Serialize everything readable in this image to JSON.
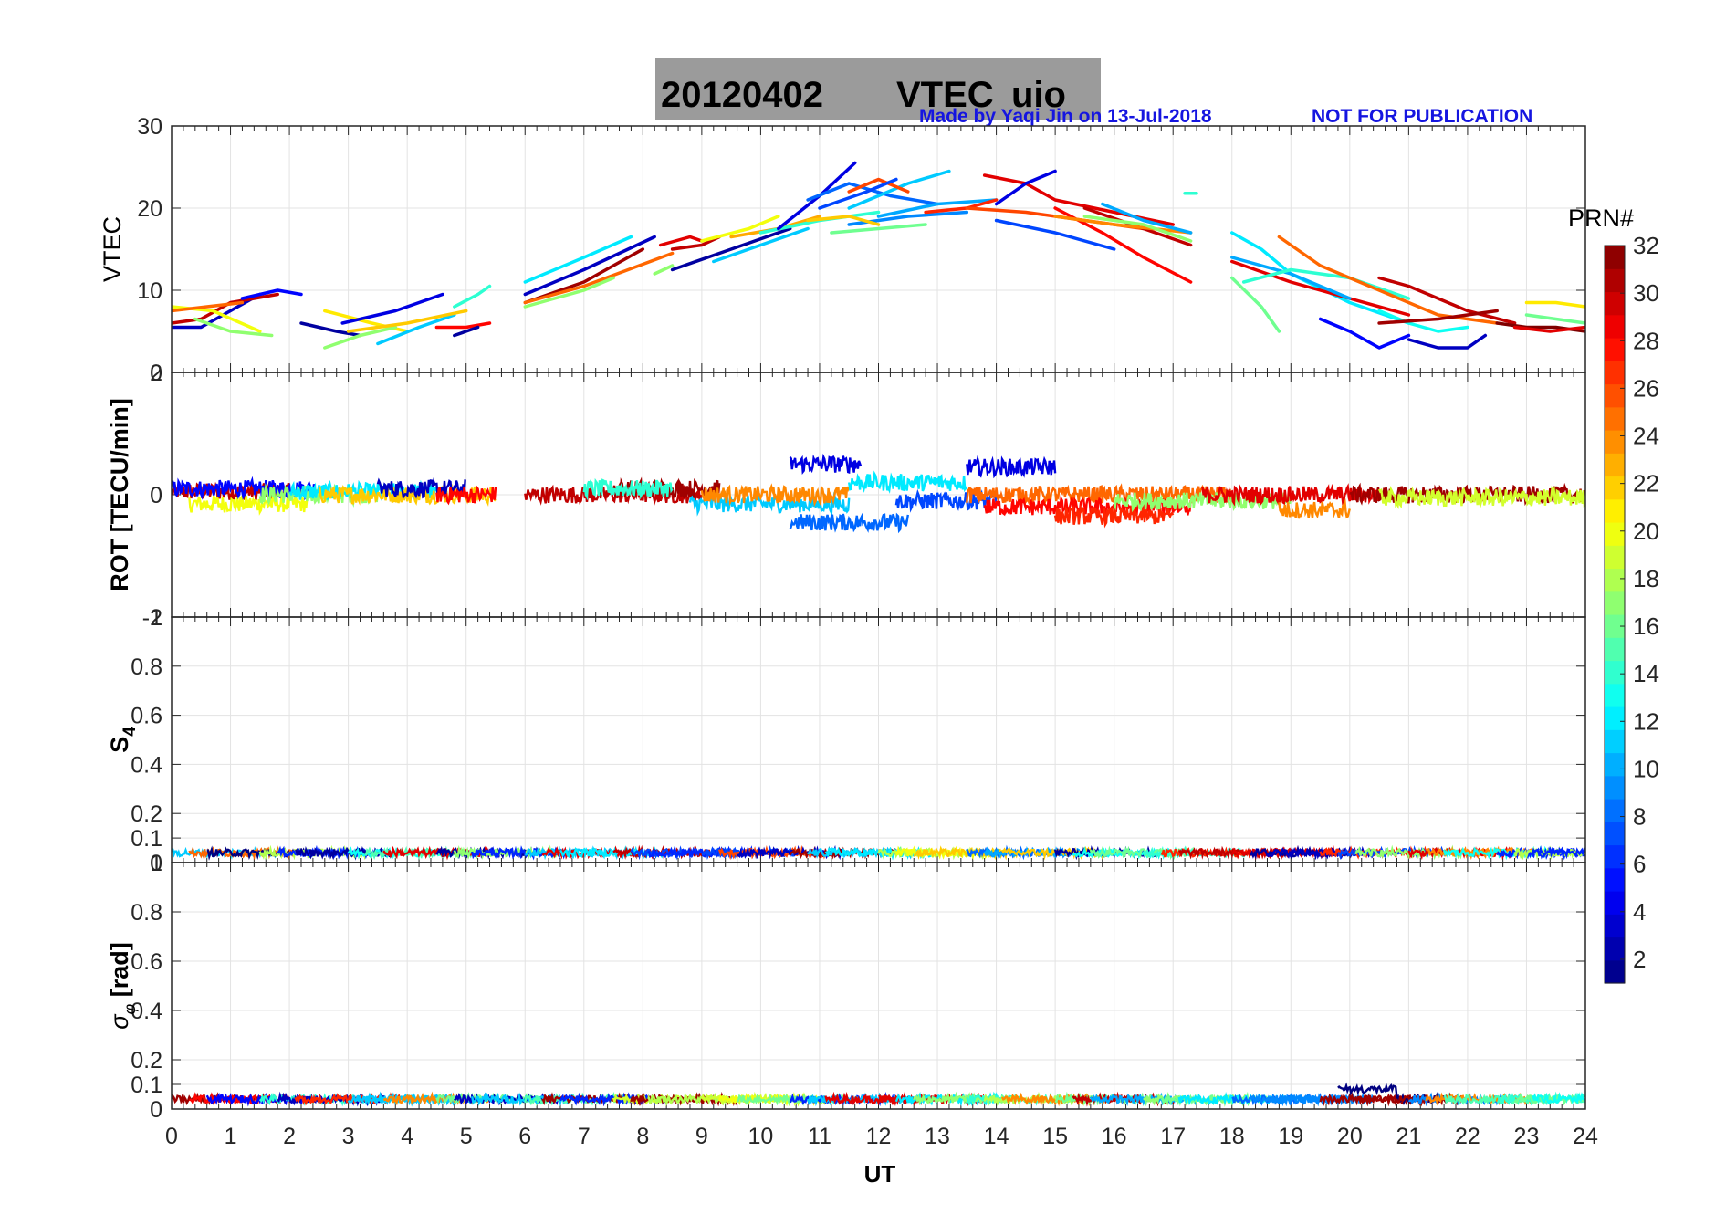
{
  "figure": {
    "title_date": "20120402",
    "title_param": "VTEC",
    "title_station": "uio",
    "credit": "Made by Yaqi Jin on 13-Jul-2018",
    "notice": "NOT FOR PUBLICATION",
    "title_box_color": "#9b9b9b",
    "credit_color": "#1515e0"
  },
  "chart_data": [
    {
      "type": "line",
      "panel": "VTEC",
      "ylabel": "VTEC",
      "xlim": [
        0,
        24
      ],
      "ylim": [
        0,
        30
      ],
      "yticks": [
        0,
        10,
        20,
        30
      ],
      "grid": true,
      "series": [
        {
          "prn": 3,
          "x": [
            0.0,
            0.5,
            1.0,
            1.5
          ],
          "y": [
            5.5,
            5.5,
            7.5,
            9.5
          ]
        },
        {
          "prn": 30,
          "x": [
            0.0,
            0.5,
            1.0,
            1.8
          ],
          "y": [
            6.0,
            6.5,
            8.5,
            9.5
          ]
        },
        {
          "prn": 20,
          "x": [
            0.0,
            0.7,
            1.5
          ],
          "y": [
            8.0,
            7.5,
            5.0
          ]
        },
        {
          "prn": 17,
          "x": [
            0.4,
            1.0,
            1.7
          ],
          "y": [
            6.5,
            5.0,
            4.5
          ]
        },
        {
          "prn": 25,
          "x": [
            0.0,
            0.6,
            1.2
          ],
          "y": [
            7.5,
            8.0,
            8.5
          ]
        },
        {
          "prn": 5,
          "x": [
            1.2,
            1.8,
            2.2
          ],
          "y": [
            9.0,
            10.0,
            9.5
          ]
        },
        {
          "prn": 2,
          "x": [
            2.2,
            2.8,
            3.2
          ],
          "y": [
            6.0,
            5.0,
            4.5
          ]
        },
        {
          "prn": 21,
          "x": [
            2.6,
            3.4,
            4.0
          ],
          "y": [
            7.5,
            6.0,
            5.0
          ]
        },
        {
          "prn": 17,
          "x": [
            2.6,
            3.2,
            3.8
          ],
          "y": [
            3.0,
            4.5,
            5.5
          ]
        },
        {
          "prn": 4,
          "x": [
            2.9,
            3.8,
            4.6
          ],
          "y": [
            6.0,
            7.5,
            9.5
          ]
        },
        {
          "prn": 11,
          "x": [
            3.5,
            4.2,
            4.8
          ],
          "y": [
            3.5,
            5.5,
            7.0
          ]
        },
        {
          "prn": 22,
          "x": [
            3.0,
            4.0,
            5.0
          ],
          "y": [
            5.0,
            6.0,
            7.5
          ]
        },
        {
          "prn": 28,
          "x": [
            4.5,
            5.0,
            5.4
          ],
          "y": [
            5.5,
            5.5,
            6.0
          ]
        },
        {
          "prn": 14,
          "x": [
            4.8,
            5.2,
            5.4
          ],
          "y": [
            8.0,
            9.5,
            10.5
          ]
        },
        {
          "prn": 2,
          "x": [
            4.8,
            5.2
          ],
          "y": [
            4.5,
            5.5
          ]
        },
        {
          "prn": 12,
          "x": [
            6.0,
            7.0,
            7.8
          ],
          "y": [
            11.0,
            14.0,
            16.5
          ]
        },
        {
          "prn": 3,
          "x": [
            6.0,
            7.0,
            8.2
          ],
          "y": [
            9.5,
            12.5,
            16.5
          ]
        },
        {
          "prn": 31,
          "x": [
            6.0,
            7.0,
            8.0
          ],
          "y": [
            8.5,
            11.0,
            15.0
          ]
        },
        {
          "prn": 25,
          "x": [
            6.0,
            7.0,
            8.5
          ],
          "y": [
            8.5,
            10.5,
            14.5
          ]
        },
        {
          "prn": 17,
          "x": [
            6.0,
            7.0,
            7.5
          ],
          "y": [
            8.0,
            10.0,
            11.5
          ]
        },
        {
          "prn": 17,
          "x": [
            8.2,
            8.5
          ],
          "y": [
            12.0,
            13.0
          ]
        },
        {
          "prn": 30,
          "x": [
            8.5,
            9.0,
            9.3
          ],
          "y": [
            15.0,
            15.5,
            16.5
          ]
        },
        {
          "prn": 29,
          "x": [
            8.3,
            8.8,
            9.0
          ],
          "y": [
            15.5,
            16.5,
            16.0
          ]
        },
        {
          "prn": 2,
          "x": [
            8.5,
            9.5,
            10.5
          ],
          "y": [
            12.5,
            15.0,
            17.5
          ]
        },
        {
          "prn": 20,
          "x": [
            9.0,
            9.8,
            10.3
          ],
          "y": [
            16.0,
            17.5,
            19.0
          ]
        },
        {
          "prn": 11,
          "x": [
            9.2,
            10.0,
            10.8
          ],
          "y": [
            13.5,
            15.5,
            17.5
          ]
        },
        {
          "prn": 23,
          "x": [
            9.5,
            10.3,
            11.0
          ],
          "y": [
            16.5,
            17.5,
            19.0
          ]
        },
        {
          "prn": 14,
          "x": [
            10.0,
            11.0,
            12.0
          ],
          "y": [
            17.0,
            18.5,
            19.5
          ]
        },
        {
          "prn": 4,
          "x": [
            10.3,
            11.0,
            11.6
          ],
          "y": [
            17.5,
            21.5,
            25.5
          ]
        },
        {
          "prn": 8,
          "x": [
            10.8,
            11.5,
            12.2,
            13.0
          ],
          "y": [
            21.0,
            23.0,
            21.5,
            20.5
          ]
        },
        {
          "prn": 11,
          "x": [
            11.5,
            12.5,
            13.2
          ],
          "y": [
            20.0,
            23.0,
            24.5
          ]
        },
        {
          "prn": 26,
          "x": [
            11.5,
            12.0,
            12.5
          ],
          "y": [
            22.0,
            23.5,
            22.0
          ]
        },
        {
          "prn": 7,
          "x": [
            11.0,
            11.8,
            12.3
          ],
          "y": [
            20.0,
            22.0,
            23.5
          ]
        },
        {
          "prn": 16,
          "x": [
            11.2,
            12.0,
            12.8
          ],
          "y": [
            17.0,
            17.5,
            18.0
          ]
        },
        {
          "prn": 9,
          "x": [
            11.5,
            12.5,
            13.5
          ],
          "y": [
            18.0,
            19.0,
            19.5
          ]
        },
        {
          "prn": 22,
          "x": [
            10.8,
            11.5,
            12.0
          ],
          "y": [
            18.5,
            19.0,
            18.0
          ]
        },
        {
          "prn": 10,
          "x": [
            12.0,
            13.0,
            14.0
          ],
          "y": [
            19.0,
            20.5,
            21.0
          ]
        },
        {
          "prn": 27,
          "x": [
            12.8,
            13.5,
            14.0
          ],
          "y": [
            19.5,
            20.0,
            21.0
          ]
        },
        {
          "prn": 26,
          "x": [
            13.5,
            14.5,
            15.5,
            16.5
          ],
          "y": [
            20.0,
            19.5,
            18.5,
            17.5
          ]
        },
        {
          "prn": 29,
          "x": [
            13.8,
            14.5,
            15.0,
            16.0,
            17.0
          ],
          "y": [
            24.0,
            23.0,
            21.0,
            19.5,
            18.0
          ]
        },
        {
          "prn": 4,
          "x": [
            14.0,
            14.5,
            15.0
          ],
          "y": [
            20.5,
            23.0,
            24.5
          ]
        },
        {
          "prn": 28,
          "x": [
            15.0,
            15.8,
            16.5,
            17.3
          ],
          "y": [
            20.0,
            17.0,
            14.0,
            11.0
          ]
        },
        {
          "prn": 7,
          "x": [
            14.0,
            15.0,
            16.0
          ],
          "y": [
            18.5,
            17.0,
            15.0
          ]
        },
        {
          "prn": 30,
          "x": [
            15.5,
            16.5,
            17.3
          ],
          "y": [
            20.0,
            17.5,
            15.5
          ]
        },
        {
          "prn": 24,
          "x": [
            15.0,
            16.0,
            17.3
          ],
          "y": [
            19.0,
            18.0,
            17.0
          ]
        },
        {
          "prn": 10,
          "x": [
            15.8,
            16.5,
            17.3
          ],
          "y": [
            20.5,
            18.5,
            17.0
          ]
        },
        {
          "prn": 17,
          "x": [
            15.5,
            16.5,
            17.3
          ],
          "y": [
            19.0,
            18.0,
            16.0
          ]
        },
        {
          "prn": 14,
          "x": [
            17.2,
            17.4
          ],
          "y": [
            21.8,
            21.8
          ]
        },
        {
          "prn": 12,
          "x": [
            18.0,
            18.5,
            19.0,
            20.0,
            21.0
          ],
          "y": [
            17.0,
            15.0,
            12.0,
            8.5,
            6.0
          ]
        },
        {
          "prn": 16,
          "x": [
            18.0,
            18.5,
            18.8
          ],
          "y": [
            11.5,
            8.0,
            5.0
          ]
        },
        {
          "prn": 29,
          "x": [
            18.0,
            19.0,
            20.0,
            21.0
          ],
          "y": [
            13.5,
            11.0,
            9.0,
            7.0
          ]
        },
        {
          "prn": 10,
          "x": [
            18.0,
            19.0,
            20.0
          ],
          "y": [
            14.0,
            12.0,
            9.0
          ]
        },
        {
          "prn": 14,
          "x": [
            18.2,
            19.0,
            20.0,
            21.0
          ],
          "y": [
            11.0,
            12.5,
            11.5,
            9.0
          ]
        },
        {
          "prn": 25,
          "x": [
            18.8,
            19.5,
            20.5,
            21.5,
            22.5
          ],
          "y": [
            16.5,
            13.0,
            10.0,
            7.0,
            6.0
          ]
        },
        {
          "prn": 5,
          "x": [
            19.5,
            20.0,
            20.5,
            21.0
          ],
          "y": [
            6.5,
            5.0,
            3.0,
            4.5
          ]
        },
        {
          "prn": 30,
          "x": [
            20.5,
            21.0,
            21.5,
            22.0,
            22.8
          ],
          "y": [
            11.5,
            10.5,
            9.0,
            7.5,
            6.0
          ]
        },
        {
          "prn": 13,
          "x": [
            20.5,
            21.0,
            21.5,
            22.0
          ],
          "y": [
            7.5,
            6.0,
            5.0,
            5.5
          ]
        },
        {
          "prn": 31,
          "x": [
            20.5,
            21.5,
            22.5
          ],
          "y": [
            6.0,
            6.5,
            7.5
          ]
        },
        {
          "prn": 3,
          "x": [
            21.0,
            21.5,
            22.0,
            22.3
          ],
          "y": [
            4.0,
            3.0,
            3.0,
            4.5
          ]
        },
        {
          "prn": 32,
          "x": [
            22.5,
            23.0,
            23.5,
            24.0
          ],
          "y": [
            6.0,
            5.5,
            5.5,
            5.0
          ]
        },
        {
          "prn": 21,
          "x": [
            23.0,
            23.5,
            24.0
          ],
          "y": [
            8.5,
            8.5,
            8.0
          ]
        },
        {
          "prn": 16,
          "x": [
            23.0,
            23.5,
            24.0
          ],
          "y": [
            7.0,
            6.5,
            6.0
          ]
        },
        {
          "prn": 29,
          "x": [
            22.8,
            23.4,
            24.0
          ],
          "y": [
            5.5,
            5.0,
            5.5
          ]
        }
      ]
    },
    {
      "type": "scatter",
      "panel": "ROT",
      "ylabel": "ROT [TECU/min]",
      "xlim": [
        0,
        24
      ],
      "ylim": [
        -2,
        2
      ],
      "ytick_labels": [
        "-2",
        "0",
        "2"
      ],
      "grid": true,
      "bands": [
        {
          "prn": 30,
          "x0": 0.0,
          "x1": 2.0,
          "y": 0.05
        },
        {
          "prn": 20,
          "x0": 0.3,
          "x1": 2.3,
          "y": -0.15
        },
        {
          "prn": 5,
          "x0": 0.0,
          "x1": 2.5,
          "y": 0.1
        },
        {
          "prn": 17,
          "x0": 1.5,
          "x1": 3.5,
          "y": 0.0
        },
        {
          "prn": 12,
          "x0": 2.0,
          "x1": 4.5,
          "y": 0.05
        },
        {
          "prn": 22,
          "x0": 2.5,
          "x1": 5.5,
          "y": 0.0
        },
        {
          "prn": 3,
          "x0": 3.5,
          "x1": 5.0,
          "y": 0.1
        },
        {
          "prn": 28,
          "x0": 4.5,
          "x1": 5.5,
          "y": 0.0
        },
        {
          "prn": 30,
          "x0": 6.0,
          "x1": 9.0,
          "y": 0.0
        },
        {
          "prn": 31,
          "x0": 7.5,
          "x1": 9.3,
          "y": 0.1
        },
        {
          "prn": 14,
          "x0": 7.0,
          "x1": 8.5,
          "y": 0.1
        },
        {
          "prn": 11,
          "x0": 8.8,
          "x1": 11.5,
          "y": -0.15
        },
        {
          "prn": 24,
          "x0": 9.0,
          "x1": 11.5,
          "y": 0.0
        },
        {
          "prn": 8,
          "x0": 10.5,
          "x1": 12.5,
          "y": -0.45
        },
        {
          "prn": 4,
          "x0": 10.5,
          "x1": 11.7,
          "y": 0.5
        },
        {
          "prn": 12,
          "x0": 11.5,
          "x1": 13.5,
          "y": 0.2
        },
        {
          "prn": 7,
          "x0": 12.3,
          "x1": 14.0,
          "y": -0.1
        },
        {
          "prn": 4,
          "x0": 13.5,
          "x1": 15.0,
          "y": 0.45
        },
        {
          "prn": 25,
          "x0": 13.5,
          "x1": 18.0,
          "y": 0.0
        },
        {
          "prn": 28,
          "x0": 13.8,
          "x1": 17.3,
          "y": -0.2
        },
        {
          "prn": 27,
          "x0": 15.0,
          "x1": 17.0,
          "y": -0.35
        },
        {
          "prn": 17,
          "x0": 16.0,
          "x1": 19.0,
          "y": -0.1
        },
        {
          "prn": 29,
          "x0": 17.5,
          "x1": 20.5,
          "y": 0.0
        },
        {
          "prn": 24,
          "x0": 18.8,
          "x1": 20.0,
          "y": -0.25
        },
        {
          "prn": 31,
          "x0": 20.0,
          "x1": 24.0,
          "y": 0.0
        },
        {
          "prn": 19,
          "x0": 20.5,
          "x1": 24.0,
          "y": -0.05
        }
      ]
    },
    {
      "type": "scatter",
      "panel": "S4",
      "ylabel": "S4",
      "xlim": [
        0,
        24
      ],
      "ylim": [
        0,
        1
      ],
      "ytick_labels": [
        "0",
        "0.1",
        "0.2",
        "0.4",
        "0.6",
        "0.8",
        "1"
      ],
      "grid": true,
      "baseline": 0.04
    },
    {
      "type": "scatter",
      "panel": "sigma_phi",
      "ylabel": "σφ [rad]",
      "xlim": [
        0,
        24
      ],
      "ylim": [
        0,
        1
      ],
      "ytick_labels": [
        "0",
        "0.1",
        "0.2",
        "0.4",
        "0.6",
        "0.8",
        "1"
      ],
      "xticks": [
        0,
        1,
        2,
        3,
        4,
        5,
        6,
        7,
        8,
        9,
        10,
        11,
        12,
        13,
        14,
        15,
        16,
        17,
        18,
        19,
        20,
        21,
        22,
        23,
        24
      ],
      "xlabel": "UT",
      "grid": true,
      "baseline": 0.04
    }
  ],
  "colorbar": {
    "label": "PRN#",
    "ticks": [
      2,
      4,
      6,
      8,
      10,
      12,
      14,
      16,
      18,
      20,
      22,
      24,
      26,
      28,
      30,
      32
    ],
    "range": [
      1,
      32
    ]
  }
}
